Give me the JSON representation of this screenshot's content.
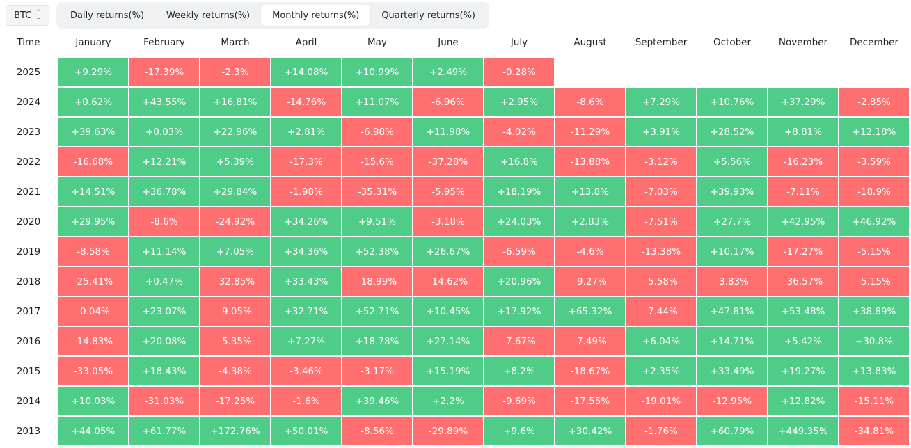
{
  "asset_selector": {
    "value": "BTC"
  },
  "tabs": [
    {
      "label": "Daily returns(%)",
      "active": false
    },
    {
      "label": "Weekly returns(%)",
      "active": false
    },
    {
      "label": "Monthly returns(%)",
      "active": true
    },
    {
      "label": "Quarterly returns(%)",
      "active": false
    }
  ],
  "colors": {
    "positive": "#4fcc88",
    "negative": "#ff6f70"
  },
  "table": {
    "time_header": "Time",
    "months": [
      "January",
      "February",
      "March",
      "April",
      "May",
      "June",
      "July",
      "August",
      "September",
      "October",
      "November",
      "December"
    ],
    "rows": [
      {
        "year": "2025",
        "values": [
          "+9.29%",
          "-17.39%",
          "-2.3%",
          "+14.08%",
          "+10.99%",
          "+2.49%",
          "-0.28%",
          "",
          "",
          "",
          "",
          ""
        ]
      },
      {
        "year": "2024",
        "values": [
          "+0.62%",
          "+43.55%",
          "+16.81%",
          "-14.76%",
          "+11.07%",
          "-6.96%",
          "+2.95%",
          "-8.6%",
          "+7.29%",
          "+10.76%",
          "+37.29%",
          "-2.85%"
        ]
      },
      {
        "year": "2023",
        "values": [
          "+39.63%",
          "+0.03%",
          "+22.96%",
          "+2.81%",
          "-6.98%",
          "+11.98%",
          "-4.02%",
          "-11.29%",
          "+3.91%",
          "+28.52%",
          "+8.81%",
          "+12.18%"
        ]
      },
      {
        "year": "2022",
        "values": [
          "-16.68%",
          "+12.21%",
          "+5.39%",
          "-17.3%",
          "-15.6%",
          "-37.28%",
          "+16.8%",
          "-13.88%",
          "-3.12%",
          "+5.56%",
          "-16.23%",
          "-3.59%"
        ]
      },
      {
        "year": "2021",
        "values": [
          "+14.51%",
          "+36.78%",
          "+29.84%",
          "-1.98%",
          "-35.31%",
          "-5.95%",
          "+18.19%",
          "+13.8%",
          "-7.03%",
          "+39.93%",
          "-7.11%",
          "-18.9%"
        ]
      },
      {
        "year": "2020",
        "values": [
          "+29.95%",
          "-8.6%",
          "-24.92%",
          "+34.26%",
          "+9.51%",
          "-3.18%",
          "+24.03%",
          "+2.83%",
          "-7.51%",
          "+27.7%",
          "+42.95%",
          "+46.92%"
        ]
      },
      {
        "year": "2019",
        "values": [
          "-8.58%",
          "+11.14%",
          "+7.05%",
          "+34.36%",
          "+52.38%",
          "+26.67%",
          "-6.59%",
          "-4.6%",
          "-13.38%",
          "+10.17%",
          "-17.27%",
          "-5.15%"
        ]
      },
      {
        "year": "2018",
        "values": [
          "-25.41%",
          "+0.47%",
          "-32.85%",
          "+33.43%",
          "-18.99%",
          "-14.62%",
          "+20.96%",
          "-9.27%",
          "-5.58%",
          "-3.83%",
          "-36.57%",
          "-5.15%"
        ]
      },
      {
        "year": "2017",
        "values": [
          "-0.04%",
          "+23.07%",
          "-9.05%",
          "+32.71%",
          "+52.71%",
          "+10.45%",
          "+17.92%",
          "+65.32%",
          "-7.44%",
          "+47.81%",
          "+53.48%",
          "+38.89%"
        ]
      },
      {
        "year": "2016",
        "values": [
          "-14.83%",
          "+20.08%",
          "-5.35%",
          "+7.27%",
          "+18.78%",
          "+27.14%",
          "-7.67%",
          "-7.49%",
          "+6.04%",
          "+14.71%",
          "+5.42%",
          "+30.8%"
        ]
      },
      {
        "year": "2015",
        "values": [
          "-33.05%",
          "+18.43%",
          "-4.38%",
          "-3.46%",
          "-3.17%",
          "+15.19%",
          "+8.2%",
          "-18.67%",
          "+2.35%",
          "+33.49%",
          "+19.27%",
          "+13.83%"
        ]
      },
      {
        "year": "2014",
        "values": [
          "+10.03%",
          "-31.03%",
          "-17.25%",
          "-1.6%",
          "+39.46%",
          "+2.2%",
          "-9.69%",
          "-17.55%",
          "-19.01%",
          "-12.95%",
          "+12.82%",
          "-15.11%"
        ]
      },
      {
        "year": "2013",
        "values": [
          "+44.05%",
          "+61.77%",
          "+172.76%",
          "+50.01%",
          "-8.56%",
          "-29.89%",
          "+9.6%",
          "+30.42%",
          "-1.76%",
          "+60.79%",
          "+449.35%",
          "-34.81%"
        ]
      }
    ]
  }
}
